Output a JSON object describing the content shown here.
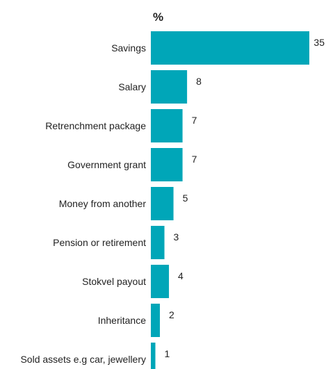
{
  "chart_data": {
    "type": "bar",
    "orientation": "horizontal",
    "unit_label": "%",
    "categories": [
      "Savings",
      "Salary",
      "Retrenchment package",
      "Government grant",
      "Money from another",
      "Pension or retirement",
      "Stokvel payout",
      "Inheritance",
      "Sold assets e.g car, jewellery"
    ],
    "values": [
      35,
      8,
      7,
      7,
      5,
      3,
      4,
      2,
      1
    ],
    "data_labels": [
      "35",
      "8",
      "7",
      "7",
      "5",
      "3",
      "4",
      "2",
      "1"
    ],
    "xlim": [
      0,
      35
    ],
    "grid": false,
    "legend": "none",
    "bar_color": "#00a6b8"
  }
}
